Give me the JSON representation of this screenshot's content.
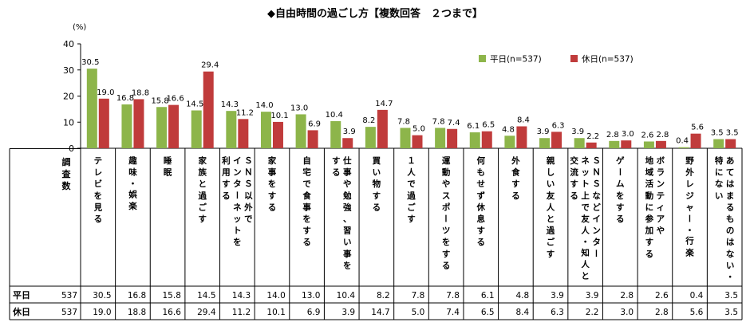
{
  "chart_data": {
    "type": "bar",
    "title": "◆自由時間の過ごし方【複数回答　２つまで】",
    "ylabel": "(%)",
    "ylim": [
      0,
      40
    ],
    "yticks": [
      0,
      10,
      20,
      30,
      40
    ],
    "grid": false,
    "legend_position": "top-right",
    "row_header_label": "調査数",
    "categories": [
      "テレビを見る",
      "趣味・娯楽",
      "睡眠",
      "家族と過ごす",
      "ＳＮＳ以外でインターネットを利用する",
      "家事をする",
      "自宅で食事をする",
      "仕事や勉強、習い事をする",
      "買い物する",
      "１人で過ごす",
      "運動やスポーツをする",
      "何もせず休息する",
      "外食する",
      "親しい友人と過ごす",
      "ＳＮＳなどインターネット上で友人・知人と交流する",
      "ゲームをする",
      "ボランティアや地域活動に参加する",
      "野外レジャー・行楽",
      "あてはまるものはない・特にない"
    ],
    "category_lines": [
      [
        "テレビを見る"
      ],
      [
        "趣味・娯楽"
      ],
      [
        "睡眠"
      ],
      [
        "家族と過ごす"
      ],
      [
        "ＳＮＳ以外で",
        "インターネットを",
        "利用する"
      ],
      [
        "家事をする"
      ],
      [
        "自宅で食事をする"
      ],
      [
        "仕事や勉強、習い事を",
        "する"
      ],
      [
        "買い物する"
      ],
      [
        "１人で過ごす"
      ],
      [
        "運動やスポーツをする"
      ],
      [
        "何もせず休息する"
      ],
      [
        "外食する"
      ],
      [
        "親しい友人と過ごす"
      ],
      [
        "ＳＮＳなどインター",
        "ネット上で友人・知人と",
        "交流する"
      ],
      [
        "ゲームをする"
      ],
      [
        "ボランティアや",
        "地域活動に参加する"
      ],
      [
        "野外レジャー・行楽"
      ],
      [
        "あてはまるものはない・",
        "特にない"
      ]
    ],
    "series": [
      {
        "name": "平日",
        "legend": "平日(n=537)",
        "n": 537,
        "color": "#8db54a",
        "values": [
          30.5,
          16.8,
          15.8,
          14.5,
          14.3,
          14.0,
          13.0,
          10.4,
          8.2,
          7.8,
          7.8,
          6.1,
          4.8,
          3.9,
          3.9,
          2.8,
          2.6,
          0.4,
          3.5
        ]
      },
      {
        "name": "休日",
        "legend": "休日(n=537)",
        "n": 537,
        "color": "#c03b3b",
        "values": [
          19.0,
          18.8,
          16.6,
          29.4,
          11.2,
          10.1,
          6.9,
          3.9,
          14.7,
          5.0,
          7.4,
          6.5,
          8.4,
          6.3,
          2.2,
          3.0,
          2.8,
          5.6,
          3.5
        ]
      }
    ]
  }
}
